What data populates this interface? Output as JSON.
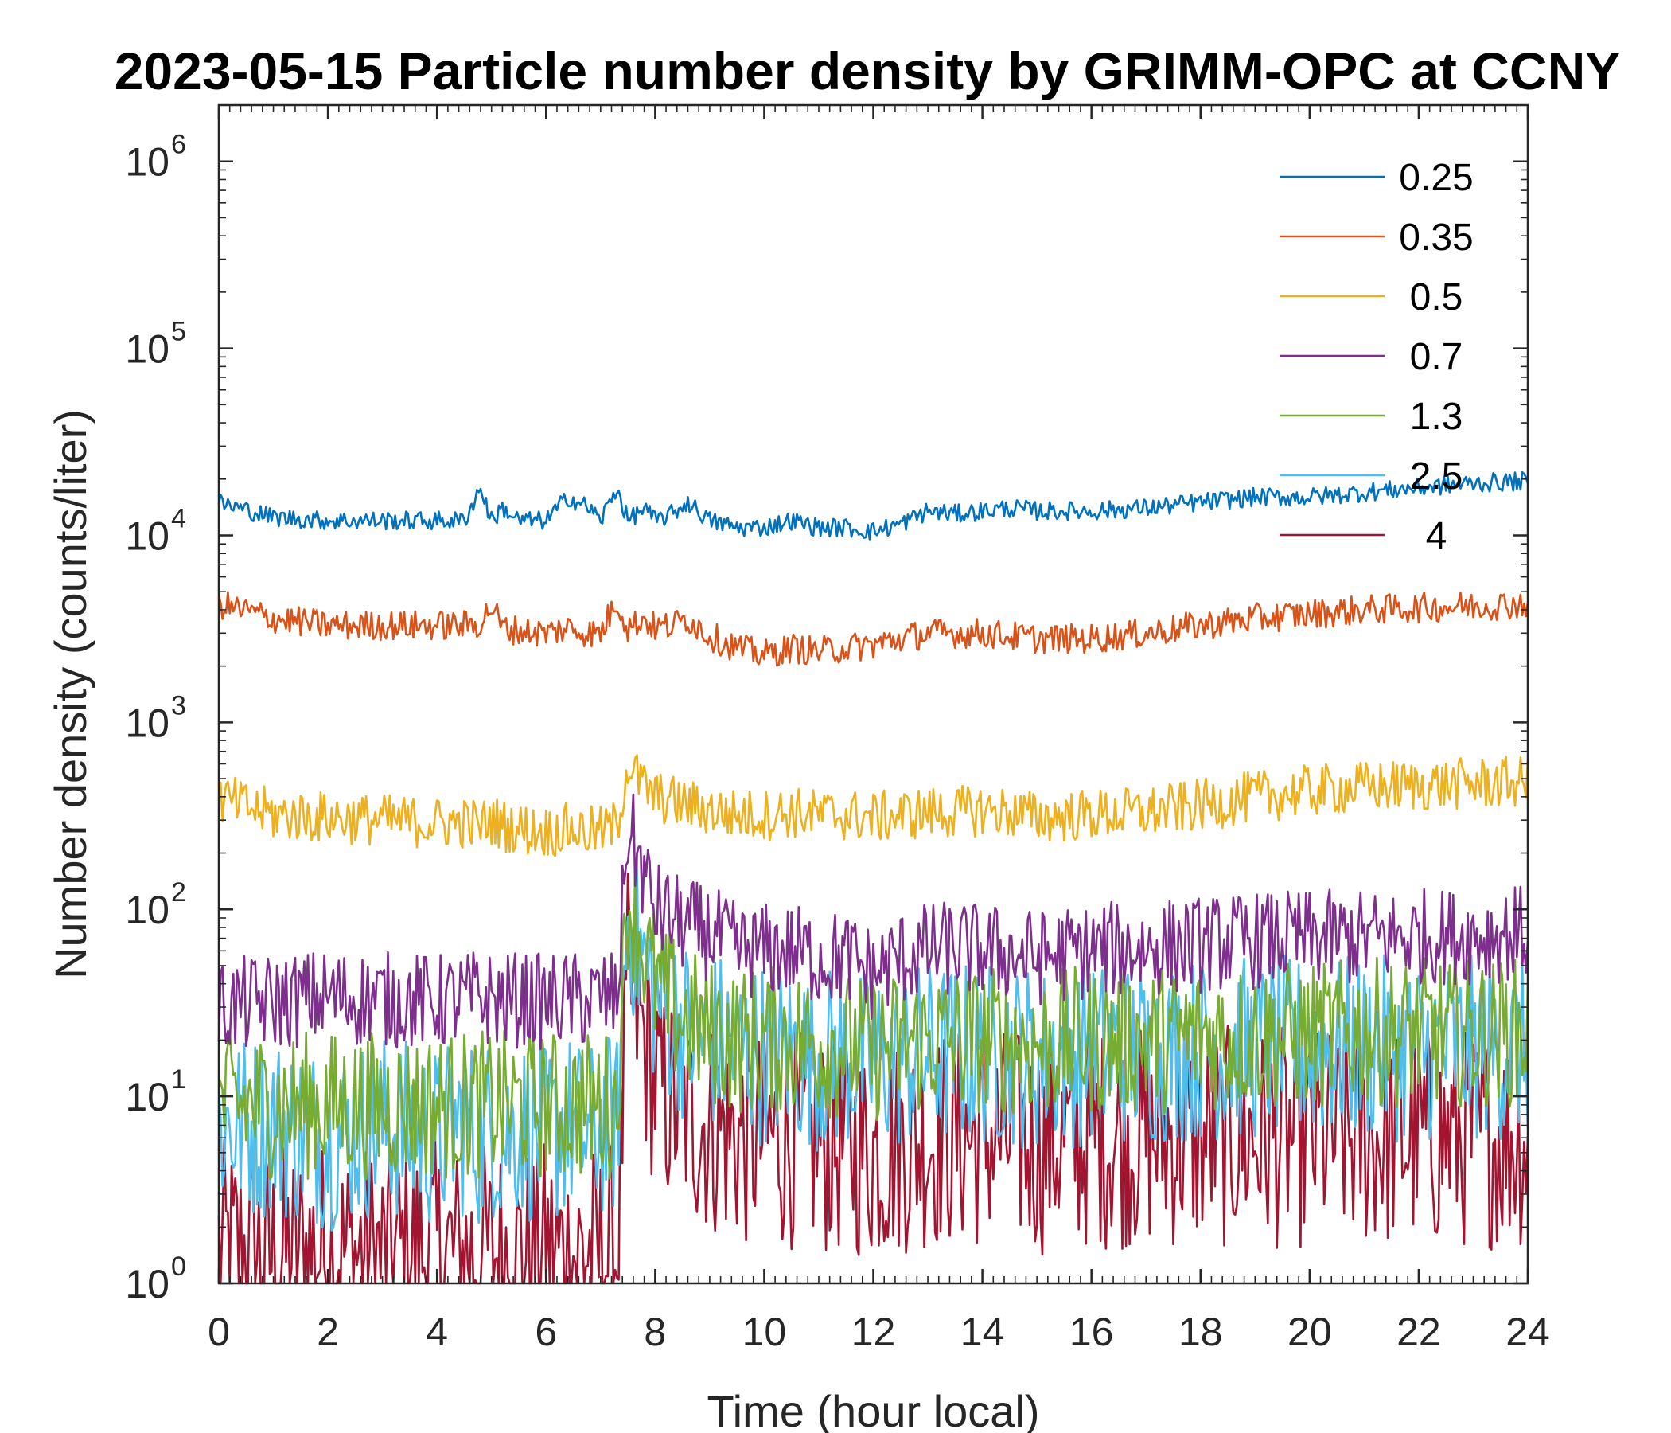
{
  "chart_data": {
    "type": "line",
    "title": "2023-05-15 Particle number density by GRIMM-OPC at CCNY",
    "xlabel": "Time (hour local)",
    "ylabel": "Number density (counts/liter)",
    "xlim": [
      0,
      24
    ],
    "ylim": [
      1,
      2000000
    ],
    "yscale": "log",
    "xticks": [
      0,
      2,
      4,
      6,
      8,
      10,
      12,
      14,
      16,
      18,
      20,
      22,
      24
    ],
    "xtick_labels": [
      "0",
      "2",
      "4",
      "6",
      "8",
      "10",
      "12",
      "14",
      "16",
      "18",
      "20",
      "22",
      "24"
    ],
    "yticks": [
      1,
      10,
      100,
      1000,
      10000,
      100000,
      1000000
    ],
    "ytick_base": "10",
    "ytick_exponents": [
      "0",
      "1",
      "2",
      "3",
      "4",
      "5",
      "6"
    ],
    "grid": false,
    "legend_position": "top-right",
    "x": [
      0,
      1,
      2,
      3,
      4,
      4.5,
      4.8,
      5.0,
      5.2,
      5.5,
      6.0,
      6.4,
      6.8,
      7.0,
      7.3,
      7.5,
      7.8,
      8.0,
      8.3,
      8.6,
      9.0,
      9.5,
      10.0,
      10.5,
      11.0,
      11.5,
      12.0,
      12.5,
      13.0,
      13.5,
      14.0,
      14.5,
      15.0,
      16.0,
      17.0,
      18.0,
      19.0,
      20.0,
      21.0,
      22.0,
      23.0,
      24.0
    ],
    "series": [
      {
        "name": "0.25",
        "color": "#0072BD",
        "values": [
          15000,
          12500,
          12000,
          12000,
          12000,
          12000,
          18000,
          12000,
          14000,
          12000,
          12000,
          16000,
          14000,
          12000,
          18000,
          12000,
          14000,
          12000,
          13000,
          15000,
          12000,
          11000,
          11000,
          12000,
          11000,
          11000,
          10500,
          11500,
          13500,
          13000,
          13500,
          14000,
          13500,
          13500,
          14000,
          15000,
          16000,
          16000,
          17000,
          18000,
          19000,
          19500
        ]
      },
      {
        "name": "0.35",
        "color": "#D95319",
        "values": [
          4300,
          3600,
          3300,
          3300,
          3300,
          3300,
          3400,
          4200,
          3200,
          3100,
          3000,
          3200,
          3000,
          3000,
          4500,
          3200,
          3600,
          3200,
          3300,
          3600,
          2900,
          2500,
          2300,
          2500,
          2400,
          2500,
          2600,
          2800,
          3000,
          3000,
          3000,
          2900,
          2800,
          2800,
          3000,
          3300,
          3600,
          3800,
          4000,
          4100,
          4200,
          4300
        ]
      },
      {
        "name": "0.5",
        "color": "#EDB120",
        "values": [
          390,
          320,
          310,
          300,
          290,
          290,
          280,
          300,
          280,
          270,
          260,
          270,
          260,
          260,
          280,
          600,
          450,
          400,
          380,
          360,
          340,
          320,
          320,
          330,
          320,
          320,
          310,
          320,
          330,
          330,
          340,
          330,
          310,
          320,
          330,
          360,
          400,
          430,
          450,
          460,
          470,
          480
        ]
      },
      {
        "name": "0.7",
        "color": "#7E2F8E",
        "values": [
          30,
          32,
          34,
          33,
          32,
          33,
          34,
          33,
          32,
          33,
          32,
          33,
          32,
          34,
          33,
          280,
          150,
          100,
          90,
          80,
          75,
          60,
          60,
          60,
          55,
          55,
          45,
          55,
          60,
          62,
          60,
          58,
          55,
          60,
          62,
          65,
          68,
          70,
          70,
          72,
          72,
          75
        ]
      },
      {
        "name": "1.3",
        "color": "#77AC30",
        "values": [
          9,
          9,
          9,
          9,
          9,
          9,
          9,
          9,
          9,
          9,
          9,
          9,
          9,
          9,
          9,
          120,
          60,
          40,
          30,
          25,
          22,
          20,
          20,
          20,
          19,
          19,
          18,
          19,
          20,
          20,
          20,
          20,
          19,
          20,
          20,
          21,
          21,
          21,
          22,
          22,
          22,
          22
        ]
      },
      {
        "name": "2.5",
        "color": "#4DBEEE",
        "values": [
          7,
          7,
          6,
          7,
          6,
          7,
          6,
          7,
          6,
          7,
          6,
          7,
          6,
          7,
          7,
          100,
          50,
          35,
          28,
          22,
          20,
          18,
          17,
          17,
          16,
          16,
          15,
          16,
          17,
          17,
          17,
          17,
          16,
          17,
          17,
          18,
          18,
          18,
          18,
          18,
          18,
          18
        ]
      },
      {
        "name": "4",
        "color": "#A2142F",
        "values": [
          1.5,
          1.4,
          1.5,
          1.4,
          1.5,
          1.4,
          1.5,
          1.4,
          1.5,
          1.4,
          1.5,
          1.4,
          1.5,
          1.4,
          1.5,
          40,
          20,
          12,
          9,
          8,
          7,
          6,
          6,
          6,
          5.5,
          5.5,
          5,
          5.5,
          6,
          6,
          6,
          6,
          5.5,
          6,
          6,
          6,
          6,
          6,
          6,
          6,
          6,
          6
        ]
      }
    ]
  }
}
